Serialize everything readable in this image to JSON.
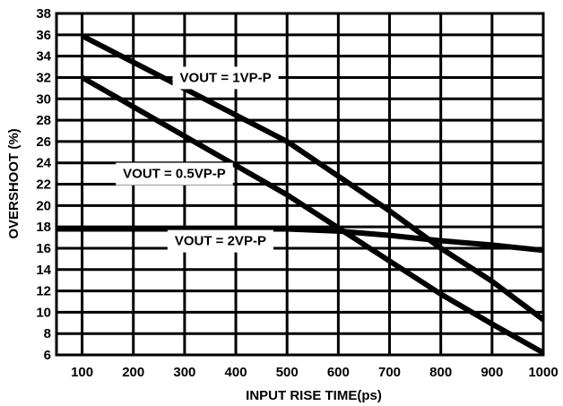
{
  "chart_data": {
    "type": "line",
    "xlabel": "INPUT RISE TIME(ps)",
    "ylabel": "OVERSHOOT (%)",
    "xlim": [
      50,
      1000
    ],
    "ylim": [
      6,
      38
    ],
    "x_ticks": [
      100,
      200,
      300,
      400,
      500,
      600,
      700,
      800,
      900,
      1000
    ],
    "y_ticks": [
      6,
      8,
      10,
      12,
      14,
      16,
      18,
      20,
      22,
      24,
      26,
      28,
      30,
      32,
      34,
      36,
      38
    ],
    "grid": true,
    "series": [
      {
        "name": "VOUT = 1VP-P",
        "x": [
          100,
          500,
          700,
          800,
          900,
          1000
        ],
        "y": [
          35.9,
          26.0,
          19.5,
          16.0,
          12.9,
          9.3
        ]
      },
      {
        "name": "VOUT = 0.5VP-P",
        "x": [
          100,
          500,
          700,
          800,
          900,
          1000
        ],
        "y": [
          32.0,
          21.0,
          14.8,
          11.7,
          8.9,
          6.2
        ]
      },
      {
        "name": "VOUT = 2VP-P",
        "x": [
          50,
          500,
          600,
          700,
          800,
          900,
          1000
        ],
        "y": [
          17.8,
          17.8,
          17.6,
          17.2,
          16.7,
          16.3,
          15.8
        ]
      }
    ]
  }
}
